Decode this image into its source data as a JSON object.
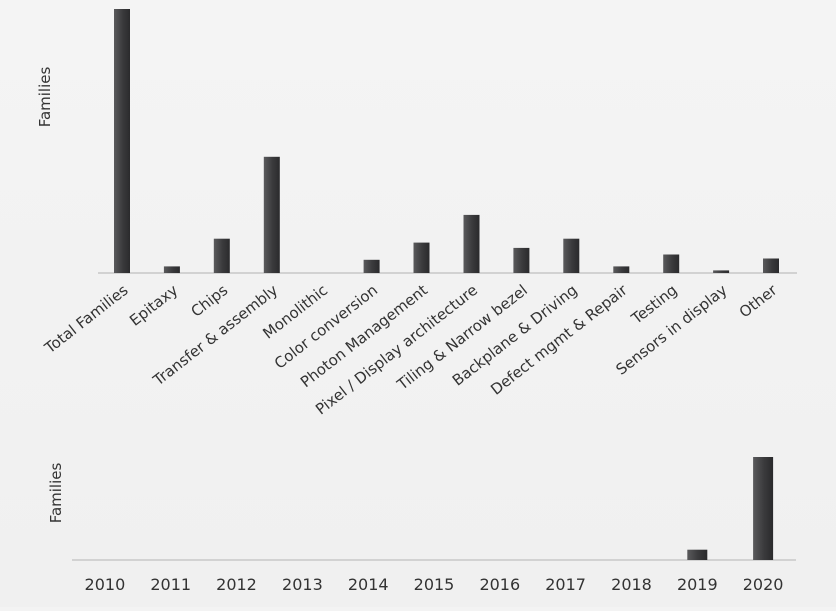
{
  "colors": {
    "background": "#f3f3f3",
    "bar": "#4a4a4c",
    "bar_dark": "#2f2f31",
    "axis": "#c8c8c8",
    "text": "#333333"
  },
  "chart_data": [
    {
      "type": "bar",
      "ylabel": "Families",
      "xlabel": "",
      "ylim": [
        0,
        100
      ],
      "categories": [
        "Total Families",
        "Epitaxy",
        "Chips",
        "Transfer & assembly",
        "Monolithic",
        "Color conversion",
        "Photon Management",
        "Pixel / Display architecture",
        "Tiling & Narrow bezel",
        "Backplane & Driving",
        "Defect mgmt & Repair",
        "Testing",
        "Sensors in display",
        "Other"
      ],
      "values": [
        100,
        2.5,
        13,
        44,
        0,
        5,
        11.5,
        22,
        9.5,
        13,
        2.5,
        7,
        1,
        5.5
      ],
      "grid": false,
      "legend": "none"
    },
    {
      "type": "bar",
      "ylabel": "Families",
      "xlabel": "",
      "ylim": [
        0,
        100
      ],
      "categories": [
        "2010",
        "2011",
        "2012",
        "2013",
        "2014",
        "2015",
        "2016",
        "2017",
        "2018",
        "2019",
        "2020"
      ],
      "values": [
        0,
        0,
        0,
        0,
        0,
        0,
        0,
        0,
        0,
        10,
        100
      ],
      "grid": false,
      "legend": "none"
    }
  ]
}
